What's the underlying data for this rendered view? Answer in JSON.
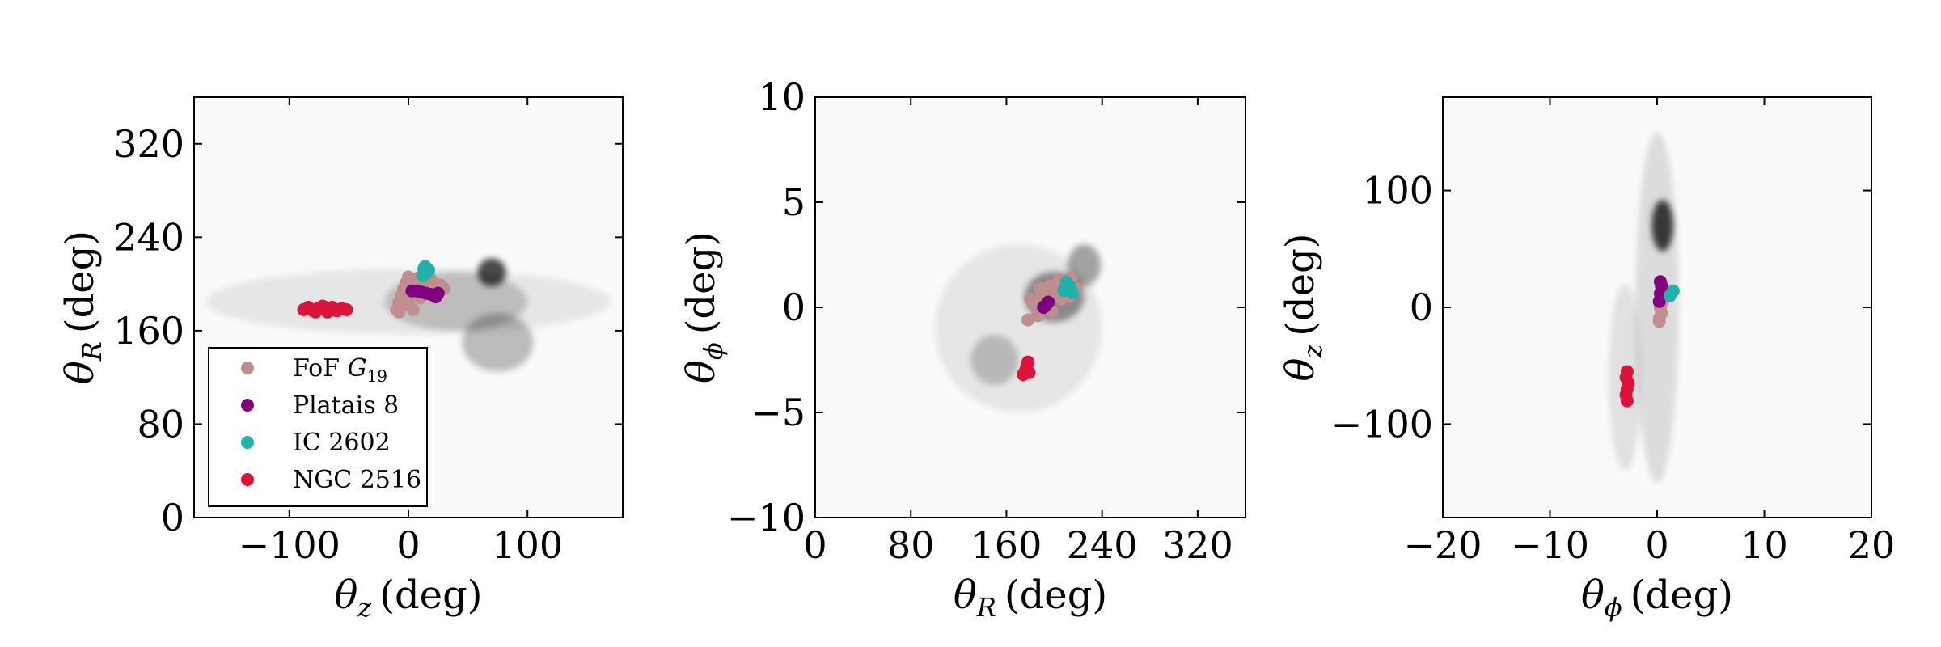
{
  "colors": {
    "fof": "#c08e8e",
    "platais": "#800080",
    "ic": "#20b2aa",
    "ngc": "#dc143c",
    "density": "#000000"
  },
  "legend": {
    "entries": [
      {
        "key": "fof",
        "text": "FoF ",
        "math": "G",
        "sub": "19"
      },
      {
        "key": "platais",
        "text": "Platais 8"
      },
      {
        "key": "ic",
        "text": "IC 2602"
      },
      {
        "key": "ngc",
        "text": "NGC 2516"
      }
    ],
    "placement": "lower-left of first panel"
  },
  "chart_data": [
    {
      "type": "scatter",
      "background": "density map (grey)",
      "xlabel": {
        "sym": "θ",
        "sub": "z",
        "unit": "(deg)"
      },
      "ylabel": {
        "sym": "θ",
        "sub": "R",
        "unit": "(deg)"
      },
      "xlim": [
        -180,
        180
      ],
      "ylim": [
        0,
        360
      ],
      "xticks": [
        -100,
        0,
        100
      ],
      "xtick_labels": [
        "−100",
        "0",
        "100"
      ],
      "yticks": [
        0,
        80,
        160,
        240,
        320
      ],
      "ytick_labels": [
        "0",
        "80",
        "160",
        "240",
        "320"
      ],
      "density_blobs": [
        {
          "x": 70,
          "y": 210,
          "sx": 12,
          "sy": 12,
          "a": 0.7
        },
        {
          "x": 75,
          "y": 150,
          "sx": 30,
          "sy": 25,
          "a": 0.25
        },
        {
          "x": 40,
          "y": 185,
          "sx": 60,
          "sy": 25,
          "a": 0.18
        },
        {
          "x": 0,
          "y": 185,
          "sx": 170,
          "sy": 28,
          "a": 0.08
        }
      ],
      "series": [
        {
          "key": "fof",
          "points": [
            [
              -10,
              178
            ],
            [
              -8,
              184
            ],
            [
              -6,
              190
            ],
            [
              -4,
              196
            ],
            [
              -2,
              201
            ],
            [
              0,
              206
            ],
            [
              2,
              188
            ],
            [
              4,
              178
            ],
            [
              6,
              192
            ],
            [
              8,
              205
            ],
            [
              10,
              188
            ],
            [
              12,
              200
            ],
            [
              14,
              192
            ],
            [
              16,
              198
            ],
            [
              18,
              205
            ],
            [
              20,
              196
            ],
            [
              22,
              200
            ],
            [
              24,
              196
            ],
            [
              27,
              199
            ],
            [
              30,
              196
            ],
            [
              -8,
              176
            ],
            [
              -4,
              182
            ],
            [
              2,
              198
            ],
            [
              8,
              196
            ],
            [
              14,
              203
            ],
            [
              20,
              202
            ]
          ]
        },
        {
          "key": "platais",
          "points": [
            [
              3,
              194
            ],
            [
              7,
              194
            ],
            [
              11,
              193
            ],
            [
              15,
              192
            ],
            [
              19,
              191
            ],
            [
              23,
              189
            ],
            [
              25,
              192
            ]
          ]
        },
        {
          "key": "ic",
          "points": [
            [
              12,
              207
            ],
            [
              13,
              213
            ],
            [
              15,
              209
            ],
            [
              17,
              212
            ],
            [
              14,
              215
            ]
          ]
        },
        {
          "key": "ngc",
          "points": [
            [
              -88,
              178
            ],
            [
              -84,
              180
            ],
            [
              -80,
              177
            ],
            [
              -76,
              179
            ],
            [
              -72,
              181
            ],
            [
              -68,
              176
            ],
            [
              -64,
              180
            ],
            [
              -60,
              177
            ],
            [
              -56,
              179
            ],
            [
              -52,
              178
            ],
            [
              -70,
              180
            ],
            [
              -78,
              176
            ]
          ]
        }
      ]
    },
    {
      "type": "scatter",
      "background": "density map (grey)",
      "xlabel": {
        "sym": "θ",
        "sub": "R",
        "unit": "(deg)"
      },
      "ylabel": {
        "sym": "θ",
        "sub": "ϕ",
        "unit": "(deg)"
      },
      "xlim": [
        0,
        360
      ],
      "ylim": [
        -10,
        10
      ],
      "xticks": [
        0,
        80,
        160,
        240,
        320
      ],
      "xtick_labels": [
        "0",
        "80",
        "160",
        "240",
        "320"
      ],
      "yticks": [
        -10,
        -5,
        0,
        5,
        10
      ],
      "ytick_labels": [
        "−10",
        "−5",
        "0",
        "5",
        "10"
      ],
      "density_blobs": [
        {
          "x": 200,
          "y": 0.5,
          "sx": 25,
          "sy": 1.2,
          "a": 0.4
        },
        {
          "x": 225,
          "y": 2,
          "sx": 14,
          "sy": 1.0,
          "a": 0.35
        },
        {
          "x": 150,
          "y": -2.5,
          "sx": 20,
          "sy": 1.2,
          "a": 0.2
        },
        {
          "x": 170,
          "y": -1,
          "sx": 70,
          "sy": 4,
          "a": 0.08
        }
      ],
      "series": [
        {
          "key": "fof",
          "points": [
            [
              178,
              -0.6
            ],
            [
              182,
              0.2
            ],
            [
              186,
              -0.4
            ],
            [
              190,
              0.6
            ],
            [
              194,
              0.3
            ],
            [
              198,
              -0.2
            ],
            [
              202,
              0.7
            ],
            [
              206,
              0.4
            ],
            [
              210,
              1.2
            ],
            [
              214,
              1.4
            ],
            [
              218,
              0.9
            ],
            [
              180,
              0.4
            ],
            [
              188,
              0.9
            ],
            [
              196,
              1.0
            ],
            [
              204,
              1.3
            ],
            [
              212,
              0.5
            ]
          ]
        },
        {
          "key": "platais",
          "points": [
            [
              191,
              0.0
            ],
            [
              193,
              0.1
            ],
            [
              195,
              0.25
            ]
          ]
        },
        {
          "key": "ic",
          "points": [
            [
              208,
              0.8
            ],
            [
              210,
              1.2
            ],
            [
              213,
              1.0
            ],
            [
              215,
              0.7
            ]
          ]
        },
        {
          "key": "ngc",
          "points": [
            [
              174,
              -3.2
            ],
            [
              176,
              -3.0
            ],
            [
              177,
              -2.8
            ],
            [
              178,
              -2.6
            ],
            [
              179,
              -3.1
            ]
          ]
        }
      ]
    },
    {
      "type": "scatter",
      "background": "density map (grey)",
      "xlabel": {
        "sym": "θ",
        "sub": "ϕ",
        "unit": "(deg)"
      },
      "ylabel": {
        "sym": "θ",
        "sub": "z",
        "unit": "(deg)"
      },
      "xlim": [
        -20,
        20
      ],
      "ylim": [
        -180,
        180
      ],
      "xticks": [
        -20,
        -10,
        0,
        10,
        20
      ],
      "xtick_labels": [
        "−20",
        "−10",
        "0",
        "10",
        "20"
      ],
      "yticks": [
        -100,
        0,
        100
      ],
      "ytick_labels": [
        "−100",
        "0",
        "100"
      ],
      "density_blobs": [
        {
          "x": 0.5,
          "y": 70,
          "sx": 1.0,
          "sy": 22,
          "a": 0.75
        },
        {
          "x": 0,
          "y": 0,
          "sx": 2.0,
          "sy": 150,
          "a": 0.12
        },
        {
          "x": -3,
          "y": -60,
          "sx": 1.5,
          "sy": 80,
          "a": 0.1
        }
      ],
      "series": [
        {
          "key": "fof",
          "points": [
            [
              0.2,
              -10
            ],
            [
              0.4,
              -5
            ],
            [
              0.3,
              0
            ],
            [
              0.5,
              5
            ],
            [
              0.3,
              10
            ],
            [
              0.6,
              15
            ],
            [
              0.4,
              20
            ],
            [
              0.8,
              12
            ],
            [
              0.2,
              -12
            ]
          ]
        },
        {
          "key": "platais",
          "points": [
            [
              0.2,
              5
            ],
            [
              0.3,
              12
            ],
            [
              0.4,
              18
            ],
            [
              0.3,
              22
            ]
          ]
        },
        {
          "key": "ic",
          "points": [
            [
              1.2,
              10
            ],
            [
              1.5,
              14
            ]
          ]
        },
        {
          "key": "ngc",
          "points": [
            [
              -2.8,
              -55
            ],
            [
              -2.9,
              -60
            ],
            [
              -2.7,
              -65
            ],
            [
              -2.8,
              -70
            ],
            [
              -2.9,
              -75
            ],
            [
              -2.8,
              -80
            ]
          ]
        }
      ]
    }
  ]
}
